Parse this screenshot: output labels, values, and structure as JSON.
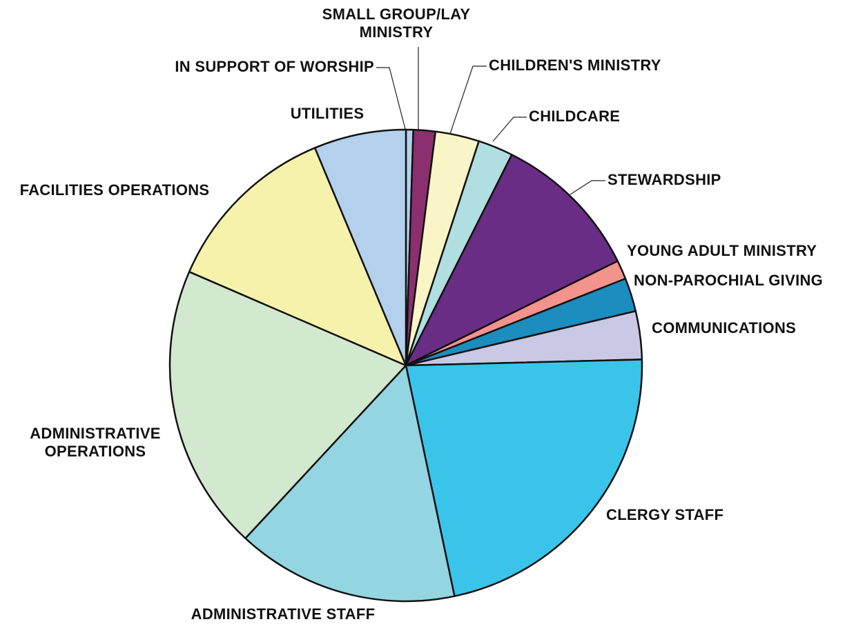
{
  "chart_data": {
    "type": "pie",
    "title": "",
    "start_angle_deg": 0,
    "direction": "clockwise",
    "slices": [
      {
        "label": "IN SUPPORT OF WORSHIP",
        "lines": [
          "IN SUPPORT OF WORSHIP"
        ],
        "value": 0.5,
        "color": "#b3d1ed"
      },
      {
        "label": "SMALL GROUP/LAY MINISTRY",
        "lines": [
          "SMALL GROUP/LAY",
          "MINISTRY"
        ],
        "value": 1.5,
        "color": "#8b2f6e"
      },
      {
        "label": "CHILDREN'S MINISTRY",
        "lines": [
          "CHILDREN'S MINISTRY"
        ],
        "value": 3.0,
        "color": "#faf5c6"
      },
      {
        "label": "CHILDCARE",
        "lines": [
          "CHILDCARE"
        ],
        "value": 2.4,
        "color": "#b0dee1"
      },
      {
        "label": "STEWARDSHIP",
        "lines": [
          "STEWARDSHIP"
        ],
        "value": 10.3,
        "color": "#6a2d86"
      },
      {
        "label": "YOUNG ADULT MINISTRY",
        "lines": [
          "YOUNG ADULT MINISTRY"
        ],
        "value": 1.3,
        "color": "#f4938c"
      },
      {
        "label": "NON-PAROCHIAL GIVING",
        "lines": [
          "NON-PAROCHIAL GIVING"
        ],
        "value": 2.3,
        "color": "#1b8dbe"
      },
      {
        "label": "COMMUNICATIONS",
        "lines": [
          "COMMUNICATIONS"
        ],
        "value": 3.3,
        "color": "#c9c9e6"
      },
      {
        "label": "CLERGY STAFF",
        "lines": [
          "CLERGY STAFF"
        ],
        "value": 22.1,
        "color": "#3ac4e9"
      },
      {
        "label": "ADMINISTRATIVE STAFF",
        "lines": [
          "ADMINISTRATIVE STAFF"
        ],
        "value": 15.2,
        "color": "#93d5e0"
      },
      {
        "label": "ADMINISTRATIVE OPERATIONS",
        "lines": [
          "ADMINISTRATIVE",
          "OPERATIONS"
        ],
        "value": 19.6,
        "color": "#d2e8cf"
      },
      {
        "label": "FACILITIES OPERATIONS",
        "lines": [
          "FACILITIES OPERATIONS"
        ],
        "value": 12.2,
        "color": "#f6f2ab"
      },
      {
        "label": "UTILITIES",
        "lines": [
          "UTILITIES"
        ],
        "value": 6.3,
        "color": "#b3d1ed"
      }
    ]
  }
}
